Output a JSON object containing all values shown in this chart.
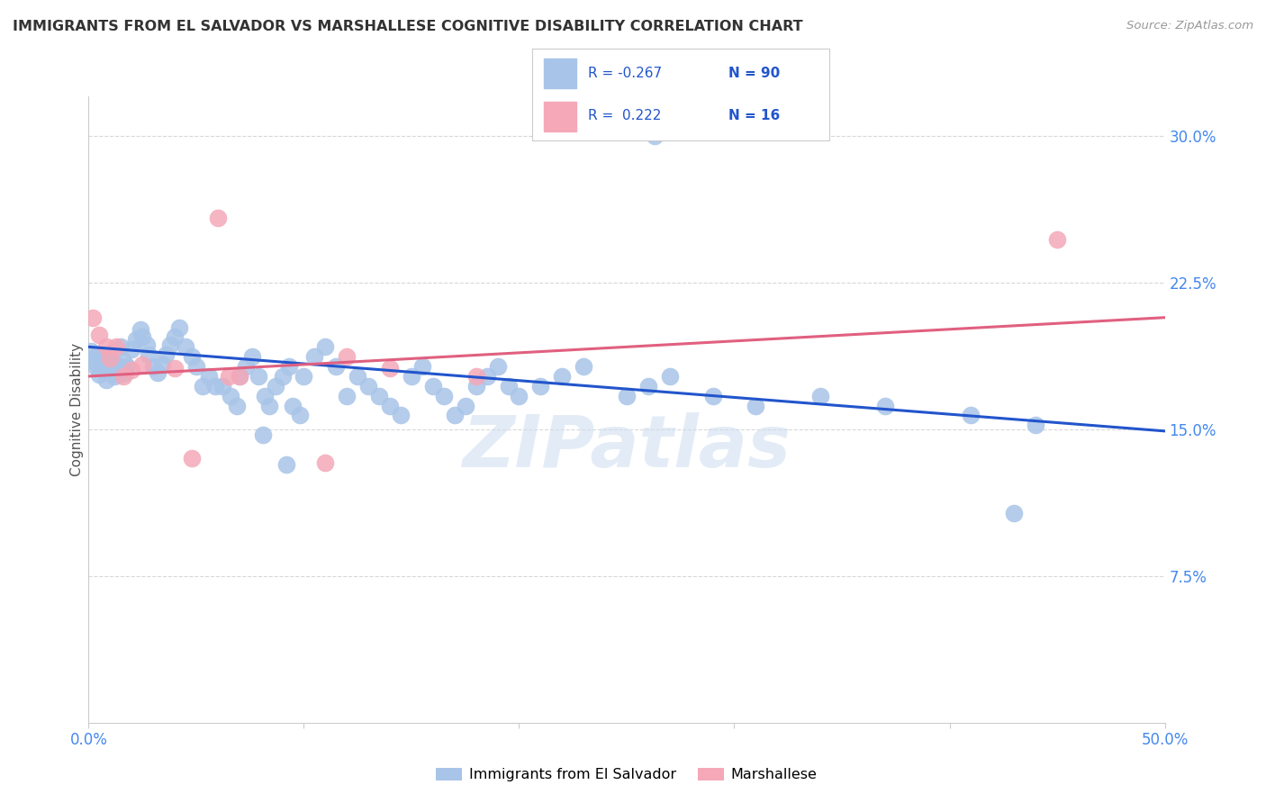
{
  "title": "IMMIGRANTS FROM EL SALVADOR VS MARSHALLESE COGNITIVE DISABILITY CORRELATION CHART",
  "source": "Source: ZipAtlas.com",
  "ylabel": "Cognitive Disability",
  "x_min": 0.0,
  "x_max": 0.5,
  "y_min": 0.0,
  "y_max": 0.32,
  "y_ticks_right": [
    0.075,
    0.15,
    0.225,
    0.3
  ],
  "y_tick_labels_right": [
    "7.5%",
    "15.0%",
    "22.5%",
    "30.0%"
  ],
  "blue_color": "#a8c4e8",
  "blue_line_color": "#2255cc",
  "pink_color": "#f4a8b8",
  "pink_line_color": "#e06080",
  "background_color": "#ffffff",
  "grid_color": "#d8d8d8",
  "legend_label1": "Immigrants from El Salvador",
  "legend_label2": "Marshallese",
  "watermark": "ZIPatlas",
  "blue_scatter": [
    [
      0.001,
      0.19
    ],
    [
      0.002,
      0.185
    ],
    [
      0.003,
      0.182
    ],
    [
      0.004,
      0.188
    ],
    [
      0.005,
      0.178
    ],
    [
      0.006,
      0.183
    ],
    [
      0.007,
      0.187
    ],
    [
      0.008,
      0.175
    ],
    [
      0.009,
      0.18
    ],
    [
      0.01,
      0.185
    ],
    [
      0.012,
      0.177
    ],
    [
      0.013,
      0.183
    ],
    [
      0.014,
      0.178
    ],
    [
      0.015,
      0.192
    ],
    [
      0.016,
      0.185
    ],
    [
      0.017,
      0.179
    ],
    [
      0.018,
      0.182
    ],
    [
      0.02,
      0.191
    ],
    [
      0.022,
      0.196
    ],
    [
      0.024,
      0.201
    ],
    [
      0.025,
      0.197
    ],
    [
      0.027,
      0.193
    ],
    [
      0.028,
      0.188
    ],
    [
      0.03,
      0.182
    ],
    [
      0.032,
      0.179
    ],
    [
      0.034,
      0.183
    ],
    [
      0.036,
      0.188
    ],
    [
      0.038,
      0.193
    ],
    [
      0.04,
      0.197
    ],
    [
      0.042,
      0.202
    ],
    [
      0.045,
      0.192
    ],
    [
      0.048,
      0.187
    ],
    [
      0.05,
      0.182
    ],
    [
      0.053,
      0.172
    ],
    [
      0.056,
      0.177
    ],
    [
      0.059,
      0.172
    ],
    [
      0.062,
      0.172
    ],
    [
      0.066,
      0.167
    ],
    [
      0.07,
      0.177
    ],
    [
      0.073,
      0.182
    ],
    [
      0.076,
      0.187
    ],
    [
      0.079,
      0.177
    ],
    [
      0.082,
      0.167
    ],
    [
      0.084,
      0.162
    ],
    [
      0.087,
      0.172
    ],
    [
      0.09,
      0.177
    ],
    [
      0.093,
      0.182
    ],
    [
      0.095,
      0.162
    ],
    [
      0.098,
      0.157
    ],
    [
      0.1,
      0.177
    ],
    [
      0.105,
      0.187
    ],
    [
      0.11,
      0.192
    ],
    [
      0.115,
      0.182
    ],
    [
      0.12,
      0.167
    ],
    [
      0.125,
      0.177
    ],
    [
      0.13,
      0.172
    ],
    [
      0.135,
      0.167
    ],
    [
      0.14,
      0.162
    ],
    [
      0.145,
      0.157
    ],
    [
      0.15,
      0.177
    ],
    [
      0.155,
      0.182
    ],
    [
      0.16,
      0.172
    ],
    [
      0.165,
      0.167
    ],
    [
      0.17,
      0.157
    ],
    [
      0.175,
      0.162
    ],
    [
      0.18,
      0.172
    ],
    [
      0.185,
      0.177
    ],
    [
      0.19,
      0.182
    ],
    [
      0.195,
      0.172
    ],
    [
      0.2,
      0.167
    ],
    [
      0.21,
      0.172
    ],
    [
      0.22,
      0.177
    ],
    [
      0.23,
      0.182
    ],
    [
      0.25,
      0.167
    ],
    [
      0.26,
      0.172
    ],
    [
      0.27,
      0.177
    ],
    [
      0.29,
      0.167
    ],
    [
      0.31,
      0.162
    ],
    [
      0.34,
      0.167
    ],
    [
      0.37,
      0.162
    ],
    [
      0.41,
      0.157
    ],
    [
      0.44,
      0.152
    ],
    [
      0.263,
      0.3
    ],
    [
      0.43,
      0.107
    ],
    [
      0.069,
      0.162
    ],
    [
      0.081,
      0.147
    ],
    [
      0.092,
      0.132
    ]
  ],
  "pink_scatter": [
    [
      0.002,
      0.207
    ],
    [
      0.005,
      0.198
    ],
    [
      0.008,
      0.192
    ],
    [
      0.01,
      0.186
    ],
    [
      0.013,
      0.192
    ],
    [
      0.016,
      0.177
    ],
    [
      0.02,
      0.18
    ],
    [
      0.025,
      0.183
    ],
    [
      0.04,
      0.181
    ],
    [
      0.065,
      0.177
    ],
    [
      0.07,
      0.177
    ],
    [
      0.12,
      0.187
    ],
    [
      0.14,
      0.181
    ],
    [
      0.18,
      0.177
    ],
    [
      0.45,
      0.247
    ],
    [
      0.048,
      0.135
    ],
    [
      0.06,
      0.258
    ],
    [
      0.11,
      0.133
    ]
  ],
  "blue_trend_x": [
    0.0,
    0.5
  ],
  "blue_trend_y": [
    0.192,
    0.149
  ],
  "pink_trend_x": [
    0.0,
    0.5
  ],
  "pink_trend_y": [
    0.177,
    0.207
  ]
}
